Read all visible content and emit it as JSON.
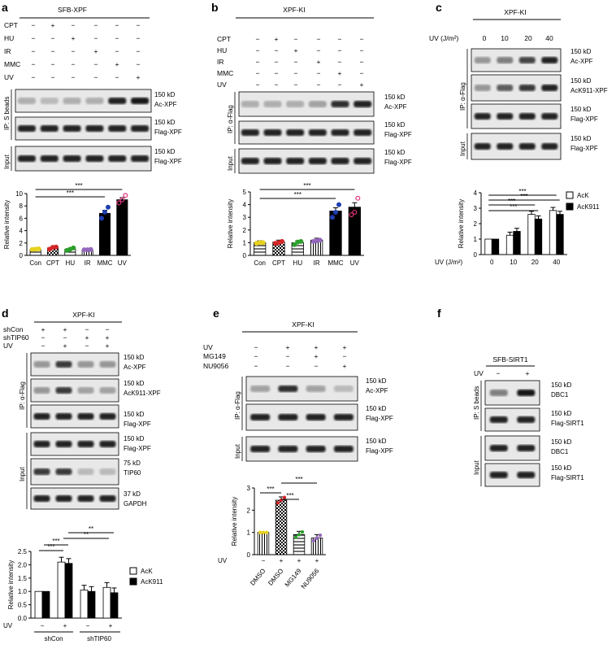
{
  "panels": {
    "a": {
      "letter": "a",
      "title": "SFB-XPF",
      "conds": [
        "CPT",
        "HU",
        "IR",
        "MMC",
        "UV"
      ],
      "matrix": [
        [
          "−",
          "+",
          "−",
          "−",
          "−",
          "−"
        ],
        [
          "−",
          "−",
          "+",
          "−",
          "−",
          "−"
        ],
        [
          "−",
          "−",
          "−",
          "+",
          "−",
          "−"
        ],
        [
          "−",
          "−",
          "−",
          "−",
          "+",
          "−"
        ],
        [
          "−",
          "−",
          "−",
          "−",
          "−",
          "+"
        ]
      ],
      "group1": "IP: S beads",
      "group2": "Input",
      "blots": [
        {
          "kd": "150 kD",
          "name": "Ac-XPF"
        },
        {
          "kd": "150 kD",
          "name": "Flag-XPF"
        },
        {
          "kd": "150 kD",
          "name": "Flag-XPF"
        }
      ],
      "ylabel": "Relative intensity",
      "sig": [
        "***",
        "***"
      ]
    },
    "b": {
      "letter": "b",
      "title": "XPF-KI",
      "conds": [
        "CPT",
        "HU",
        "IR",
        "MMC",
        "UV"
      ],
      "matrix": [
        [
          "−",
          "+",
          "−",
          "−",
          "−",
          "−"
        ],
        [
          "−",
          "−",
          "+",
          "−",
          "−",
          "−"
        ],
        [
          "−",
          "−",
          "−",
          "+",
          "−",
          "−"
        ],
        [
          "−",
          "−",
          "−",
          "−",
          "+",
          "−"
        ],
        [
          "−",
          "−",
          "−",
          "−",
          "−",
          "+"
        ]
      ],
      "group1": "IP: α-Flag",
      "group2": "Input",
      "blots": [
        {
          "kd": "150 kD",
          "name": "Ac-XPF"
        },
        {
          "kd": "150 kD",
          "name": "Flag-XPF"
        },
        {
          "kd": "150 kD",
          "name": "Flag-XPF"
        }
      ],
      "ylabel": "Relative intensity",
      "sig": [
        "***",
        "***"
      ]
    },
    "c": {
      "letter": "c",
      "title": "XPF-KI",
      "uv_label": "UV (J/m²)",
      "doses": [
        "0",
        "10",
        "20",
        "40"
      ],
      "group1": "IP: α-Flag",
      "group2": "Input",
      "blots": [
        {
          "kd": "150 kD",
          "name": "Ac-XPF"
        },
        {
          "kd": "150 kD",
          "name": "AcK911-XPF"
        },
        {
          "kd": "150 kD",
          "name": "Flag-XPF"
        },
        {
          "kd": "150 kD",
          "name": "Flag-XPF"
        }
      ],
      "ylabel": "Relative intensity",
      "xaxis_label": "UV (J/m²)",
      "legend": [
        "AcK",
        "AcK911"
      ],
      "sig": [
        "***",
        "***",
        "***",
        "***"
      ]
    },
    "d": {
      "letter": "d",
      "title": "XPF-KI",
      "rows": [
        {
          "name": "shCon",
          "vals": [
            "+",
            "+",
            "−",
            "−"
          ]
        },
        {
          "name": "shTIP60",
          "vals": [
            "−",
            "−",
            "+",
            "+"
          ]
        },
        {
          "name": "UV",
          "vals": [
            "−",
            "+",
            "−",
            "+"
          ]
        }
      ],
      "group1": "IP: α-Flag",
      "group2": "Input",
      "blots": [
        {
          "kd": "150 kD",
          "name": "Ac-XPF"
        },
        {
          "kd": "150 kD",
          "name": "AcK911-XPF"
        },
        {
          "kd": "150 kD",
          "name": "Flag-XPF"
        },
        {
          "kd": "150 kD",
          "name": "Flag-XPF"
        },
        {
          "kd": "75 kD",
          "name": "TIP60"
        },
        {
          "kd": "37 kD",
          "name": "GAPDH"
        }
      ],
      "ylabel": "Relative intensity",
      "legend": [
        "AcK",
        "AcK911"
      ],
      "uv_row": "UV",
      "uv_vals": [
        "−",
        "+",
        "−",
        "+"
      ],
      "groups": [
        "shCon",
        "shTIP60"
      ],
      "sig": [
        "***",
        "***",
        "**",
        "**"
      ]
    },
    "e": {
      "letter": "e",
      "title": "XPF-KI",
      "rows": [
        {
          "name": "UV",
          "vals": [
            "−",
            "+",
            "+",
            "+"
          ]
        },
        {
          "name": "MG149",
          "vals": [
            "−",
            "−",
            "+",
            "−"
          ]
        },
        {
          "name": "NU9056",
          "vals": [
            "−",
            "−",
            "−",
            "+"
          ]
        }
      ],
      "group1": "IP: α-Flag",
      "group2": "Input",
      "blots": [
        {
          "kd": "150 kD",
          "name": "Ac-XPF"
        },
        {
          "kd": "150 kD",
          "name": "Flag-XPF"
        },
        {
          "kd": "150 kD",
          "name": "Flag-XPF"
        }
      ],
      "ylabel": "Relative intensity",
      "uv_row": "UV",
      "uv_vals": [
        "−",
        "+",
        "+",
        "+"
      ],
      "sig": [
        "***",
        "***",
        "***"
      ]
    },
    "f": {
      "letter": "f",
      "title": "SFB-SIRT1",
      "uv": "UV",
      "uv_vals": [
        "−",
        "+"
      ],
      "group1": "IP: S beads",
      "group2": "Input",
      "blots": [
        {
          "kd": "150 kD",
          "name": "DBC1"
        },
        {
          "kd": "150 kD",
          "name": "Flag-SIRT1"
        },
        {
          "kd": "150 kD",
          "name": "DBC1"
        },
        {
          "kd": "150 kD",
          "name": "Flag-SIRT1"
        }
      ]
    }
  },
  "chart_data": [
    {
      "panel": "a",
      "type": "bar",
      "categories": [
        "Con",
        "CPT",
        "HU",
        "IR",
        "MMC",
        "UV"
      ],
      "values": [
        1.0,
        1.2,
        1.0,
        0.9,
        6.8,
        9.0
      ],
      "ylabel": "Relative intensity",
      "ylim": [
        0,
        10
      ],
      "yticks": [
        0,
        2,
        4,
        6,
        8,
        10
      ],
      "points": [
        [
          0.95,
          1.0,
          1.05
        ],
        [
          1.0,
          1.3,
          1.35
        ],
        [
          0.8,
          1.0,
          1.2
        ],
        [
          0.9,
          0.9,
          0.95
        ],
        [
          6.0,
          7.0,
          7.8
        ],
        [
          8.5,
          9.0,
          9.7
        ]
      ],
      "fills": [
        "hatch",
        "check",
        "hatch",
        "stripe",
        "black",
        "black"
      ],
      "pointColors": [
        "#e6d21c",
        "#d62728",
        "#2ca02c",
        "#9467bd",
        "#1f3fb0",
        "#e0337a"
      ]
    },
    {
      "panel": "b",
      "type": "bar",
      "categories": [
        "Con",
        "CPT",
        "HU",
        "IR",
        "MMC",
        "UV"
      ],
      "values": [
        1.0,
        1.05,
        1.0,
        1.2,
        3.5,
        3.8
      ],
      "ylabel": "Relative intensity",
      "ylim": [
        0,
        5
      ],
      "yticks": [
        0,
        1,
        2,
        3,
        4,
        5
      ],
      "points": [
        [
          0.95,
          1.0,
          1.0
        ],
        [
          0.95,
          1.0,
          1.1
        ],
        [
          0.85,
          1.05,
          1.1
        ],
        [
          1.1,
          1.15,
          1.2
        ],
        [
          3.0,
          3.4,
          4.0
        ],
        [
          3.2,
          3.4,
          4.5
        ]
      ],
      "fills": [
        "hatch",
        "check",
        "hatch",
        "stripe",
        "black",
        "black"
      ],
      "pointColors": [
        "#e6d21c",
        "#d62728",
        "#2ca02c",
        "#9467bd",
        "#1f3fb0",
        "#e0337a"
      ]
    },
    {
      "panel": "c",
      "type": "bar",
      "categories": [
        "0",
        "10",
        "20",
        "40"
      ],
      "ylabel": "Relative intensity",
      "ylim": [
        0,
        4
      ],
      "yticks": [
        0,
        1,
        2,
        3,
        4
      ],
      "series": [
        {
          "name": "AcK",
          "values": [
            1.0,
            1.25,
            2.6,
            2.85
          ]
        },
        {
          "name": "AcK911",
          "values": [
            1.0,
            1.5,
            2.3,
            2.6
          ]
        }
      ]
    },
    {
      "panel": "d",
      "type": "bar",
      "categories": [
        "shCon −",
        "shCon +",
        "shTIP60 −",
        "shTIP60 +"
      ],
      "ylabel": "Relative intensity",
      "ylim": [
        0,
        2.5
      ],
      "yticks": [
        0,
        0.5,
        1.0,
        1.5,
        2.0,
        2.5
      ],
      "series": [
        {
          "name": "AcK",
          "values": [
            1.0,
            2.1,
            1.05,
            1.15
          ]
        },
        {
          "name": "AcK911",
          "values": [
            1.0,
            2.05,
            1.0,
            0.95
          ]
        }
      ]
    },
    {
      "panel": "e",
      "type": "bar",
      "categories": [
        "DMSO",
        "DMSO",
        "MG149",
        "NU9056"
      ],
      "values": [
        1.0,
        2.45,
        0.9,
        0.75
      ],
      "ylabel": "Relative intensity",
      "ylim": [
        0,
        3
      ],
      "yticks": [
        0,
        1,
        2,
        3
      ]
    }
  ]
}
